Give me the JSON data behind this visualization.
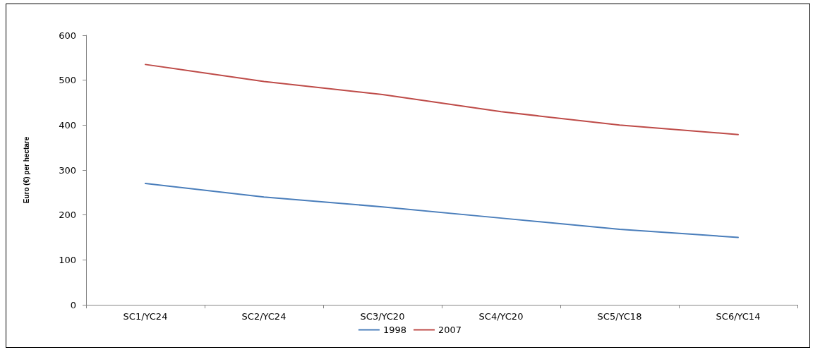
{
  "chart_data": {
    "type": "line",
    "ylabel": "Euro (€) per hectare",
    "categories": [
      "SC1/YC24",
      "SC2/YC24",
      "SC3/YC20",
      "SC4/YC20",
      "SC5/YC18",
      "SC6/YC14"
    ],
    "series": [
      {
        "name": "1998",
        "color": "#4a7ebb",
        "values": [
          270,
          240,
          218,
          193,
          168,
          150
        ]
      },
      {
        "name": "2007",
        "color": "#be4b48",
        "values": [
          535,
          497,
          468,
          430,
          400,
          379
        ]
      }
    ],
    "ylim": [
      0,
      600
    ],
    "yticks": [
      0,
      100,
      200,
      300,
      400,
      500,
      600
    ],
    "grid": false,
    "legend": "bottom",
    "marker": "none",
    "line_style": "solid"
  }
}
